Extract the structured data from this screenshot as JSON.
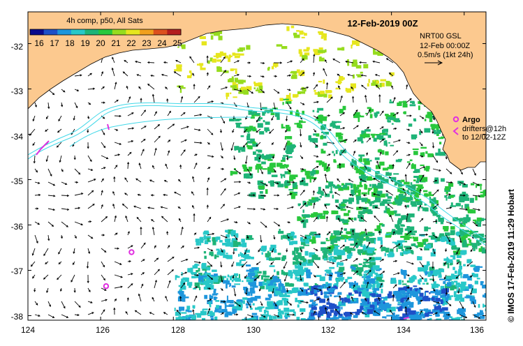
{
  "map": {
    "title": "12-Feb-2019 00Z",
    "credit": "©  IMOS 17-Feb-2019 11:29 Hobart",
    "x_ticks": [
      "124",
      "126",
      "128",
      "130",
      "132",
      "134",
      "136"
    ],
    "y_ticks": [
      "-32",
      "-33",
      "-34",
      "-35",
      "-36",
      "-37",
      "-38"
    ],
    "lon_range": [
      124,
      136.6
    ],
    "lat_range": [
      -38.1,
      -31.3
    ]
  },
  "legend": {
    "title": "4h comp, p50, All Sats",
    "values": [
      "16",
      "17",
      "18",
      "19",
      "20",
      "21",
      "22",
      "23",
      "24",
      "25"
    ],
    "colors": [
      "#0a0a8c",
      "#1e50c8",
      "#1e96dc",
      "#28c8c8",
      "#1eb478",
      "#28c83c",
      "#96dc1e",
      "#e6e61e",
      "#f0a01e",
      "#dc501e",
      "#b41e1e"
    ]
  },
  "current_key": {
    "line1": "NRT00 GSL",
    "line2": "12-Feb 00:00Z",
    "line3": "0.5m/s (1kt 24h)"
  },
  "argo_key": {
    "label": "Argo",
    "line2": "drifters@12h",
    "line3": "to 12/02-12Z"
  },
  "argo_floats": [
    {
      "lon": 126.85,
      "lat": -36.6
    },
    {
      "lon": 126.15,
      "lat": -37.35
    }
  ]
}
